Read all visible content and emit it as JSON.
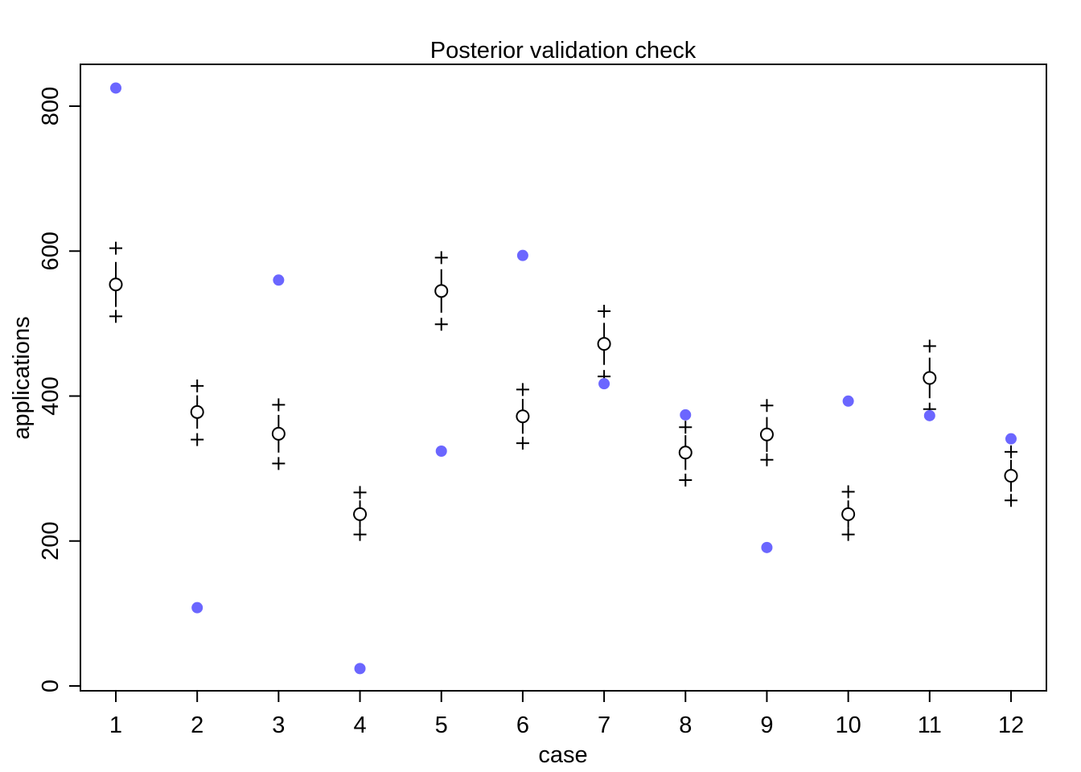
{
  "chart_data": {
    "type": "scatter",
    "title": "Posterior validation check",
    "xlabel": "case",
    "ylabel": "applications",
    "x": [
      1,
      2,
      3,
      4,
      5,
      6,
      7,
      8,
      9,
      10,
      11,
      12
    ],
    "xticks": [
      "1",
      "2",
      "3",
      "4",
      "5",
      "6",
      "7",
      "8",
      "9",
      "10",
      "11",
      "12"
    ],
    "yticks": [
      "0",
      "200",
      "400",
      "600",
      "800"
    ],
    "ytick_values": [
      0,
      200,
      400,
      600,
      800
    ],
    "xlim": [
      0.57,
      12.43
    ],
    "ylim": [
      -7,
      857
    ],
    "grid": false,
    "observed_color": "#6b66ff",
    "series": [
      {
        "name": "observed",
        "marker": "filled-circle",
        "values": [
          825,
          108,
          560,
          24,
          324,
          594,
          417,
          374,
          191,
          393,
          373,
          341
        ]
      },
      {
        "name": "posterior mean",
        "marker": "open-circle",
        "values": [
          554,
          378,
          348,
          237,
          545,
          372,
          472,
          322,
          347,
          237,
          425,
          290
        ]
      },
      {
        "name": "interval lower",
        "values": [
          523,
          355,
          322,
          218,
          515,
          348,
          443,
          298,
          323,
          218,
          397,
          268
        ]
      },
      {
        "name": "interval upper",
        "values": [
          585,
          401,
          374,
          256,
          575,
          396,
          501,
          346,
          371,
          256,
          453,
          312
        ]
      },
      {
        "name": "prediction lower",
        "marker": "plus",
        "values": [
          510,
          340,
          307,
          209,
          499,
          335,
          427,
          284,
          312,
          209,
          382,
          256
        ]
      },
      {
        "name": "prediction upper",
        "marker": "plus",
        "values": [
          604,
          414,
          388,
          267,
          591,
          409,
          517,
          357,
          387,
          268,
          469,
          323
        ]
      }
    ]
  }
}
